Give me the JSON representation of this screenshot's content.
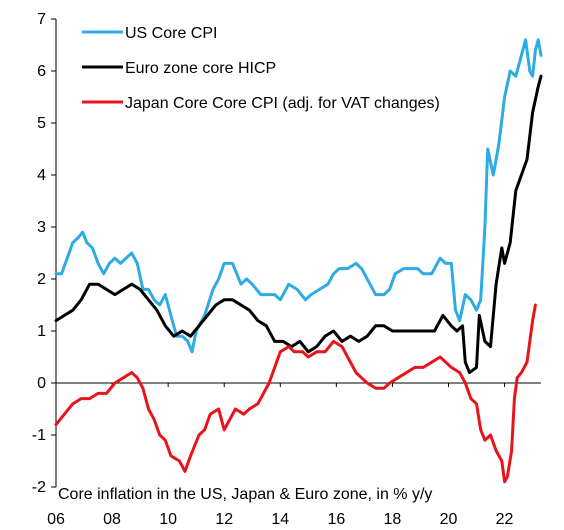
{
  "chart_data": {
    "type": "line",
    "title": "",
    "annotation": "Core inflation in the US, Japan & Euro zone, in % y/y",
    "xlabel": "",
    "ylabel": "",
    "xlim": [
      2006,
      2023.3
    ],
    "ylim": [
      -2,
      7
    ],
    "x_ticks": [
      {
        "value": 2006,
        "label": "06"
      },
      {
        "value": 2008,
        "label": "08"
      },
      {
        "value": 2010,
        "label": "10"
      },
      {
        "value": 2012,
        "label": "12"
      },
      {
        "value": 2014,
        "label": "14"
      },
      {
        "value": 2016,
        "label": "16"
      },
      {
        "value": 2018,
        "label": "18"
      },
      {
        "value": 2020,
        "label": "20"
      },
      {
        "value": 2022,
        "label": "22"
      }
    ],
    "y_ticks": [
      {
        "value": 7,
        "label": "7"
      },
      {
        "value": 6,
        "label": "6"
      },
      {
        "value": 5,
        "label": "5"
      },
      {
        "value": 4,
        "label": "4"
      },
      {
        "value": 3,
        "label": "3"
      },
      {
        "value": 2,
        "label": "2"
      },
      {
        "value": 1,
        "label": "1"
      },
      {
        "value": 0,
        "label": "0"
      },
      {
        "value": -1,
        "label": "-1"
      },
      {
        "value": -2,
        "label": "-2"
      }
    ],
    "grid": false,
    "legend_position": "top-left",
    "series": [
      {
        "name": "US Core CPI",
        "color": "#2EABE2",
        "points": [
          [
            2006.0,
            2.1
          ],
          [
            2006.2,
            2.1
          ],
          [
            2006.4,
            2.4
          ],
          [
            2006.6,
            2.7
          ],
          [
            2006.8,
            2.8
          ],
          [
            2006.95,
            2.9
          ],
          [
            2007.1,
            2.7
          ],
          [
            2007.3,
            2.6
          ],
          [
            2007.5,
            2.3
          ],
          [
            2007.7,
            2.1
          ],
          [
            2007.9,
            2.3
          ],
          [
            2008.1,
            2.4
          ],
          [
            2008.3,
            2.3
          ],
          [
            2008.5,
            2.4
          ],
          [
            2008.7,
            2.5
          ],
          [
            2008.9,
            2.3
          ],
          [
            2009.1,
            1.8
          ],
          [
            2009.3,
            1.8
          ],
          [
            2009.5,
            1.6
          ],
          [
            2009.7,
            1.5
          ],
          [
            2009.9,
            1.7
          ],
          [
            2010.1,
            1.3
          ],
          [
            2010.3,
            0.9
          ],
          [
            2010.5,
            0.9
          ],
          [
            2010.7,
            0.8
          ],
          [
            2010.85,
            0.6
          ],
          [
            2011.0,
            1.0
          ],
          [
            2011.3,
            1.3
          ],
          [
            2011.6,
            1.8
          ],
          [
            2011.8,
            2.0
          ],
          [
            2012.0,
            2.3
          ],
          [
            2012.3,
            2.3
          ],
          [
            2012.6,
            1.9
          ],
          [
            2012.8,
            2.0
          ],
          [
            2013.0,
            1.9
          ],
          [
            2013.3,
            1.7
          ],
          [
            2013.5,
            1.7
          ],
          [
            2013.8,
            1.7
          ],
          [
            2014.0,
            1.6
          ],
          [
            2014.3,
            1.9
          ],
          [
            2014.6,
            1.8
          ],
          [
            2014.9,
            1.6
          ],
          [
            2015.1,
            1.7
          ],
          [
            2015.4,
            1.8
          ],
          [
            2015.7,
            1.9
          ],
          [
            2015.9,
            2.1
          ],
          [
            2016.1,
            2.2
          ],
          [
            2016.4,
            2.2
          ],
          [
            2016.7,
            2.3
          ],
          [
            2016.9,
            2.2
          ],
          [
            2017.1,
            2.0
          ],
          [
            2017.4,
            1.7
          ],
          [
            2017.7,
            1.7
          ],
          [
            2017.9,
            1.8
          ],
          [
            2018.1,
            2.1
          ],
          [
            2018.4,
            2.2
          ],
          [
            2018.7,
            2.2
          ],
          [
            2018.9,
            2.2
          ],
          [
            2019.1,
            2.1
          ],
          [
            2019.4,
            2.1
          ],
          [
            2019.7,
            2.4
          ],
          [
            2019.9,
            2.3
          ],
          [
            2020.1,
            2.3
          ],
          [
            2020.25,
            1.4
          ],
          [
            2020.4,
            1.2
          ],
          [
            2020.6,
            1.7
          ],
          [
            2020.8,
            1.6
          ],
          [
            2021.0,
            1.4
          ],
          [
            2021.15,
            1.6
          ],
          [
            2021.3,
            3.0
          ],
          [
            2021.4,
            4.5
          ],
          [
            2021.6,
            4.0
          ],
          [
            2021.8,
            4.6
          ],
          [
            2022.0,
            5.5
          ],
          [
            2022.2,
            6.0
          ],
          [
            2022.4,
            5.9
          ],
          [
            2022.6,
            6.3
          ],
          [
            2022.75,
            6.6
          ],
          [
            2022.9,
            6.0
          ],
          [
            2023.0,
            5.9
          ],
          [
            2023.1,
            6.4
          ],
          [
            2023.2,
            6.6
          ],
          [
            2023.3,
            6.3
          ]
        ]
      },
      {
        "name": "Euro zone core HICP",
        "color": "#000000",
        "points": [
          [
            2006.0,
            1.2
          ],
          [
            2006.3,
            1.3
          ],
          [
            2006.6,
            1.4
          ],
          [
            2006.9,
            1.6
          ],
          [
            2007.2,
            1.9
          ],
          [
            2007.5,
            1.9
          ],
          [
            2007.8,
            1.8
          ],
          [
            2008.1,
            1.7
          ],
          [
            2008.4,
            1.8
          ],
          [
            2008.7,
            1.9
          ],
          [
            2009.0,
            1.8
          ],
          [
            2009.3,
            1.6
          ],
          [
            2009.6,
            1.4
          ],
          [
            2009.9,
            1.1
          ],
          [
            2010.2,
            0.9
          ],
          [
            2010.5,
            1.0
          ],
          [
            2010.8,
            0.9
          ],
          [
            2011.1,
            1.1
          ],
          [
            2011.4,
            1.3
          ],
          [
            2011.7,
            1.5
          ],
          [
            2012.0,
            1.6
          ],
          [
            2012.3,
            1.6
          ],
          [
            2012.6,
            1.5
          ],
          [
            2012.9,
            1.4
          ],
          [
            2013.2,
            1.2
          ],
          [
            2013.5,
            1.1
          ],
          [
            2013.8,
            0.8
          ],
          [
            2014.1,
            0.8
          ],
          [
            2014.4,
            0.7
          ],
          [
            2014.7,
            0.8
          ],
          [
            2015.0,
            0.6
          ],
          [
            2015.3,
            0.7
          ],
          [
            2015.6,
            0.9
          ],
          [
            2015.9,
            1.0
          ],
          [
            2016.2,
            0.8
          ],
          [
            2016.5,
            0.9
          ],
          [
            2016.8,
            0.8
          ],
          [
            2017.1,
            0.9
          ],
          [
            2017.4,
            1.1
          ],
          [
            2017.7,
            1.1
          ],
          [
            2018.0,
            1.0
          ],
          [
            2018.3,
            1.0
          ],
          [
            2018.6,
            1.0
          ],
          [
            2018.9,
            1.0
          ],
          [
            2019.2,
            1.0
          ],
          [
            2019.5,
            1.0
          ],
          [
            2019.8,
            1.3
          ],
          [
            2020.1,
            1.1
          ],
          [
            2020.3,
            1.0
          ],
          [
            2020.5,
            1.1
          ],
          [
            2020.6,
            0.4
          ],
          [
            2020.75,
            0.2
          ],
          [
            2021.0,
            0.3
          ],
          [
            2021.1,
            1.3
          ],
          [
            2021.3,
            0.8
          ],
          [
            2021.5,
            0.7
          ],
          [
            2021.7,
            1.9
          ],
          [
            2021.9,
            2.6
          ],
          [
            2022.0,
            2.3
          ],
          [
            2022.2,
            2.7
          ],
          [
            2022.4,
            3.7
          ],
          [
            2022.6,
            4.0
          ],
          [
            2022.8,
            4.3
          ],
          [
            2023.0,
            5.2
          ],
          [
            2023.2,
            5.7
          ],
          [
            2023.3,
            5.9
          ]
        ]
      },
      {
        "name": "Japan Core Core CPI (adj. for VAT changes)",
        "color": "#E8141B",
        "points": [
          [
            2006.0,
            -0.8
          ],
          [
            2006.3,
            -0.6
          ],
          [
            2006.6,
            -0.4
          ],
          [
            2006.9,
            -0.3
          ],
          [
            2007.2,
            -0.3
          ],
          [
            2007.5,
            -0.2
          ],
          [
            2007.8,
            -0.2
          ],
          [
            2008.1,
            0.0
          ],
          [
            2008.4,
            0.1
          ],
          [
            2008.7,
            0.2
          ],
          [
            2008.9,
            0.1
          ],
          [
            2009.1,
            -0.1
          ],
          [
            2009.3,
            -0.5
          ],
          [
            2009.5,
            -0.7
          ],
          [
            2009.7,
            -1.0
          ],
          [
            2009.9,
            -1.1
          ],
          [
            2010.1,
            -1.4
          ],
          [
            2010.4,
            -1.5
          ],
          [
            2010.6,
            -1.7
          ],
          [
            2010.8,
            -1.4
          ],
          [
            2011.1,
            -1.0
          ],
          [
            2011.3,
            -0.9
          ],
          [
            2011.5,
            -0.6
          ],
          [
            2011.8,
            -0.5
          ],
          [
            2012.0,
            -0.9
          ],
          [
            2012.2,
            -0.7
          ],
          [
            2012.4,
            -0.5
          ],
          [
            2012.7,
            -0.6
          ],
          [
            2012.9,
            -0.5
          ],
          [
            2013.2,
            -0.4
          ],
          [
            2013.4,
            -0.2
          ],
          [
            2013.6,
            0.0
          ],
          [
            2013.8,
            0.3
          ],
          [
            2014.0,
            0.6
          ],
          [
            2014.3,
            0.7
          ],
          [
            2014.5,
            0.6
          ],
          [
            2014.8,
            0.6
          ],
          [
            2015.0,
            0.5
          ],
          [
            2015.3,
            0.6
          ],
          [
            2015.6,
            0.6
          ],
          [
            2015.9,
            0.8
          ],
          [
            2016.2,
            0.7
          ],
          [
            2016.4,
            0.5
          ],
          [
            2016.7,
            0.2
          ],
          [
            2016.9,
            0.1
          ],
          [
            2017.1,
            0.0
          ],
          [
            2017.4,
            -0.1
          ],
          [
            2017.7,
            -0.1
          ],
          [
            2017.9,
            0.0
          ],
          [
            2018.2,
            0.1
          ],
          [
            2018.5,
            0.2
          ],
          [
            2018.8,
            0.3
          ],
          [
            2019.1,
            0.3
          ],
          [
            2019.4,
            0.4
          ],
          [
            2019.7,
            0.5
          ],
          [
            2019.9,
            0.4
          ],
          [
            2020.1,
            0.3
          ],
          [
            2020.4,
            0.2
          ],
          [
            2020.6,
            0.0
          ],
          [
            2020.8,
            -0.3
          ],
          [
            2021.0,
            -0.4
          ],
          [
            2021.15,
            -0.9
          ],
          [
            2021.3,
            -1.1
          ],
          [
            2021.5,
            -1.0
          ],
          [
            2021.7,
            -1.3
          ],
          [
            2021.9,
            -1.5
          ],
          [
            2022.0,
            -1.9
          ],
          [
            2022.1,
            -1.8
          ],
          [
            2022.25,
            -1.3
          ],
          [
            2022.35,
            -0.3
          ],
          [
            2022.45,
            0.1
          ],
          [
            2022.6,
            0.2
          ],
          [
            2022.8,
            0.4
          ],
          [
            2022.9,
            0.8
          ],
          [
            2023.0,
            1.2
          ],
          [
            2023.1,
            1.5
          ]
        ]
      }
    ]
  }
}
